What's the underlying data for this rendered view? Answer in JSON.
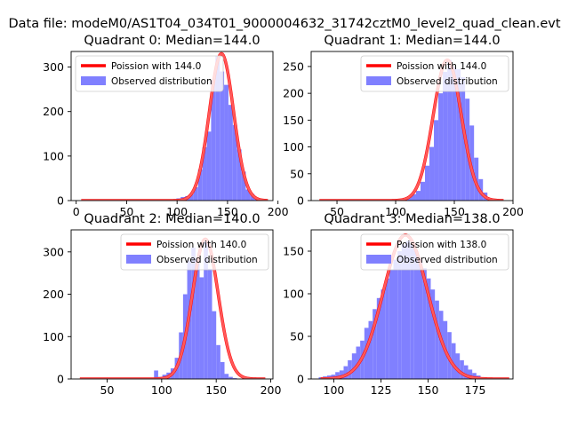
{
  "suptitle": "Data file: modeM0/AS1T04_034T01_9000004632_31742cztM0_level2_quad_clean.evt",
  "colors": {
    "poisson": "#ff0000",
    "observed": "#8080ff"
  },
  "chart_data": [
    {
      "type": "bar",
      "title": "Quadrant 0: Median=144.0",
      "xlim": [
        -5,
        195
      ],
      "ylim": [
        0,
        335
      ],
      "xticks": [
        0,
        50,
        100,
        150,
        200
      ],
      "yticks": [
        0,
        100,
        200,
        300
      ],
      "legend_position": "top",
      "poisson_label": "Poission with 144.0",
      "observed_label": "Observed distribution",
      "poisson_mean": 144.0,
      "poisson_peak": 330,
      "poisson_range": [
        5,
        190
      ],
      "hist_start": 95,
      "hist_width": 4.3,
      "hist_values": [
        3,
        5,
        8,
        10,
        15,
        30,
        70,
        120,
        155,
        270,
        325,
        290,
        260,
        215,
        170,
        115,
        65,
        25,
        15,
        5,
        2
      ]
    },
    {
      "type": "bar",
      "title": "Quadrant 1: Median=144.0",
      "xlim": [
        28,
        200
      ],
      "ylim": [
        0,
        278
      ],
      "xticks": [
        50,
        100,
        150,
        200
      ],
      "yticks": [
        0,
        50,
        100,
        150,
        200,
        250
      ],
      "legend_position": "top-right",
      "poisson_label": "Poission with 144.0",
      "observed_label": "Observed distribution",
      "poisson_mean": 144.0,
      "poisson_peak": 262,
      "poisson_range": [
        35,
        192
      ],
      "hist_start": 106,
      "hist_width": 3.8,
      "hist_values": [
        5,
        8,
        12,
        18,
        35,
        65,
        100,
        150,
        200,
        240,
        262,
        250,
        245,
        230,
        190,
        140,
        80,
        40,
        15,
        5
      ]
    },
    {
      "type": "bar",
      "title": "Quadrant 2: Median=140.0",
      "xlim": [
        17,
        202
      ],
      "ylim": [
        0,
        352
      ],
      "xticks": [
        50,
        100,
        150,
        200
      ],
      "yticks": [
        0,
        100,
        200,
        300
      ],
      "legend_position": "top-right",
      "poisson_label": "Poission with 140.0",
      "observed_label": "Observed distribution",
      "poisson_mean": 140.0,
      "poisson_peak": 330,
      "poisson_range": [
        25,
        195
      ],
      "hist_start": 93,
      "hist_width": 3.8,
      "hist_values": [
        20,
        5,
        10,
        15,
        25,
        50,
        110,
        200,
        280,
        310,
        285,
        240,
        325,
        260,
        160,
        80,
        40,
        12,
        5,
        2
      ]
    },
    {
      "type": "bar",
      "title": "Quadrant 3: Median=138.0",
      "xlim": [
        88,
        195
      ],
      "ylim": [
        0,
        175
      ],
      "xticks": [
        100,
        125,
        150,
        175
      ],
      "yticks": [
        0,
        50,
        100,
        150
      ],
      "legend_position": "top-right",
      "poisson_label": "Poission with 138.0",
      "observed_label": "Observed distribution",
      "poisson_mean": 138.0,
      "poisson_peak": 169,
      "poisson_range": [
        93,
        193
      ],
      "hist_start": 92,
      "hist_width": 2.2,
      "hist_values": [
        2,
        3,
        4,
        5,
        8,
        10,
        15,
        22,
        30,
        38,
        45,
        60,
        68,
        82,
        95,
        105,
        118,
        128,
        140,
        150,
        158,
        162,
        158,
        150,
        140,
        130,
        118,
        105,
        92,
        80,
        68,
        55,
        42,
        30,
        22,
        16,
        11,
        7,
        4,
        2
      ]
    }
  ]
}
